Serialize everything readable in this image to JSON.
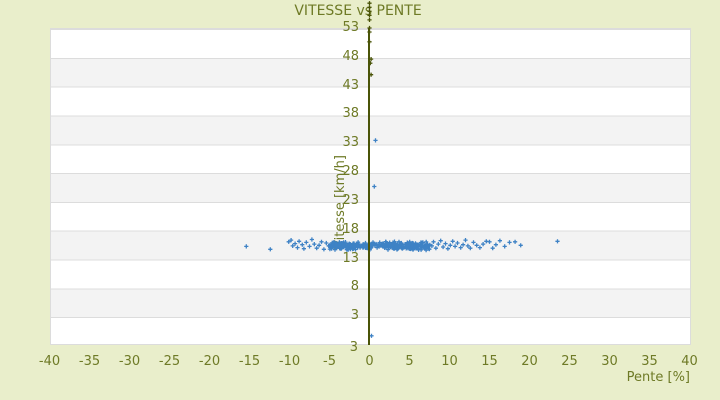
{
  "colors": {
    "background": "#e9eecb",
    "band_light": "#ffffff",
    "band_dark": "#f3f3f3",
    "grid_line": "#dcdcdc",
    "axis_line": "#4a5408",
    "text": "#6e7a26",
    "point": "#3e82c5"
  },
  "chart_data": {
    "type": "scatter",
    "title": "VITESSE vs PENTE",
    "xlabel": "Pente [%]",
    "ylabel": "Vitesse [km/h]",
    "xlim": [
      -40,
      40
    ],
    "ylim": [
      -2,
      53
    ],
    "x_ticks": [
      -40,
      -35,
      -30,
      -25,
      -20,
      -15,
      -10,
      -5,
      0,
      5,
      10,
      15,
      20,
      25,
      30,
      35,
      40
    ],
    "y_ticks": [
      53,
      48,
      43,
      38,
      33,
      28,
      23,
      18,
      13,
      8,
      3
    ],
    "y_axis_min_label": "3",
    "grid": "horizontal-bands",
    "legend": "none",
    "marker": "plus",
    "points": [
      [
        -15.4,
        15.1
      ],
      [
        -12.4,
        14.6
      ],
      [
        -10.1,
        15.9
      ],
      [
        -9.8,
        16.2
      ],
      [
        -9.6,
        15.2
      ],
      [
        -9.3,
        15.6
      ],
      [
        -9.0,
        14.9
      ],
      [
        -8.8,
        16.0
      ],
      [
        -8.4,
        15.4
      ],
      [
        -8.2,
        14.7
      ],
      [
        -7.9,
        15.8
      ],
      [
        -7.5,
        15.1
      ],
      [
        -7.2,
        16.3
      ],
      [
        -6.9,
        15.5
      ],
      [
        -6.6,
        14.8
      ],
      [
        -6.3,
        15.3
      ],
      [
        -6.0,
        15.9
      ],
      [
        -5.7,
        14.6
      ],
      [
        -5.4,
        15.7
      ],
      [
        -5.1,
        15.2
      ],
      [
        7.8,
        15.2
      ],
      [
        8.0,
        15.9
      ],
      [
        8.3,
        14.8
      ],
      [
        8.6,
        15.5
      ],
      [
        8.9,
        16.1
      ],
      [
        9.2,
        15.0
      ],
      [
        9.5,
        15.6
      ],
      [
        9.8,
        14.7
      ],
      [
        10.1,
        15.3
      ],
      [
        10.4,
        16.0
      ],
      [
        10.7,
        15.1
      ],
      [
        11.0,
        15.7
      ],
      [
        11.4,
        14.9
      ],
      [
        11.7,
        15.4
      ],
      [
        12.0,
        16.2
      ],
      [
        12.3,
        15.2
      ],
      [
        12.6,
        14.8
      ],
      [
        13.0,
        15.8
      ],
      [
        13.4,
        15.3
      ],
      [
        13.8,
        14.9
      ],
      [
        14.2,
        15.5
      ],
      [
        14.6,
        16.0
      ],
      [
        15.0,
        15.9
      ],
      [
        15.4,
        14.8
      ],
      [
        15.8,
        15.4
      ],
      [
        16.3,
        16.1
      ],
      [
        16.9,
        15.1
      ],
      [
        17.5,
        15.8
      ],
      [
        18.2,
        15.9
      ],
      [
        18.9,
        15.3
      ],
      [
        23.5,
        16.0
      ],
      [
        0.75,
        33.5
      ],
      [
        0.6,
        25.5
      ],
      [
        0.25,
        -0.4
      ]
    ],
    "axis_overlap_points": [
      [
        0,
        57.3
      ],
      [
        0,
        56.6
      ],
      [
        0,
        55.9
      ],
      [
        0,
        55.2
      ],
      [
        0,
        54.4
      ],
      [
        0,
        53.0
      ],
      [
        0,
        52.3
      ],
      [
        0,
        50.6
      ],
      [
        0.2,
        47.6
      ],
      [
        0.1,
        46.9
      ],
      [
        0.2,
        44.9
      ]
    ],
    "dense_band": {
      "x_min": -5.0,
      "x_max": 7.7,
      "y_center": 15.2,
      "y_spread": 0.8,
      "count": 300,
      "seed": 42,
      "note": "solid mass of overlapping speed readings near 15 km/h"
    }
  }
}
